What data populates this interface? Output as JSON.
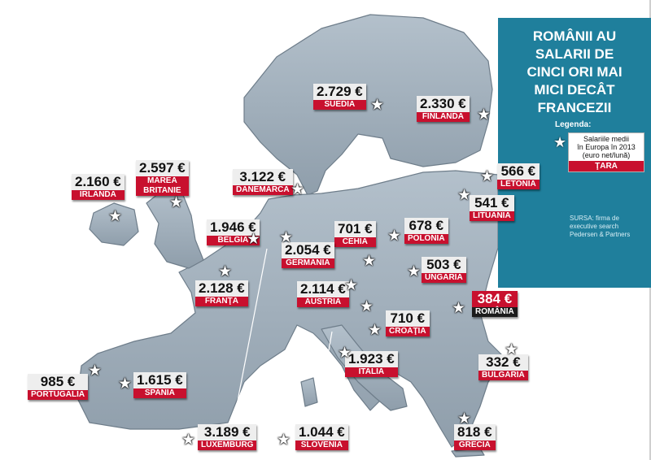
{
  "title": "ROMÂNII AU\nSALARII DE\nCINCI ORI MAI\nMICI DECÂT\nFRANCEZII",
  "legend": {
    "heading": "Legenda:",
    "description": "Salariile medii\nîn Europa în 2013\n(euro net/lună)",
    "category": "ŢARA"
  },
  "source": "SURSA: firma de executive search Pedersen & Partners",
  "countries": [
    {
      "name": "SUEDIA",
      "value": "2.729",
      "unit": "€",
      "highlight": false
    },
    {
      "name": "FINLANDA",
      "value": "2.330",
      "unit": "€",
      "highlight": false
    },
    {
      "name": "IRLANDA",
      "value": "2.160",
      "unit": "€",
      "highlight": false
    },
    {
      "name": "MAREA\nBRITANIE",
      "value": "2.597",
      "unit": "€",
      "highlight": false
    },
    {
      "name": "DANEMARCA",
      "value": "3.122",
      "unit": "€",
      "highlight": false
    },
    {
      "name": "LETONIA",
      "value": "566",
      "unit": "€",
      "highlight": false
    },
    {
      "name": "LITUANIA",
      "value": "541",
      "unit": "€",
      "highlight": false
    },
    {
      "name": "BELGIA",
      "value": "1.946",
      "unit": "€",
      "highlight": false
    },
    {
      "name": "CEHIA",
      "value": "701",
      "unit": "€",
      "highlight": false
    },
    {
      "name": "POLONIA",
      "value": "678",
      "unit": "€",
      "highlight": false
    },
    {
      "name": "GERMANIA",
      "value": "2.054",
      "unit": "€",
      "highlight": false
    },
    {
      "name": "UNGARIA",
      "value": "503",
      "unit": "€",
      "highlight": false
    },
    {
      "name": "FRANŢA",
      "value": "2.128",
      "unit": "€",
      "highlight": false
    },
    {
      "name": "AUSTRIA",
      "value": "2.114",
      "unit": "€",
      "highlight": false
    },
    {
      "name": "ROMÂNIA",
      "value": "384",
      "unit": "€",
      "highlight": true
    },
    {
      "name": "CROAŢIA",
      "value": "710",
      "unit": "€",
      "highlight": false
    },
    {
      "name": "ITALIA",
      "value": "1.923",
      "unit": "€",
      "highlight": false
    },
    {
      "name": "BULGARIA",
      "value": "332",
      "unit": "€",
      "highlight": false
    },
    {
      "name": "PORTUGALIA",
      "value": "985",
      "unit": "€",
      "highlight": false
    },
    {
      "name": "SPANIA",
      "value": "1.615",
      "unit": "€",
      "highlight": false
    },
    {
      "name": "LUXEMBURG",
      "value": "3.189",
      "unit": "€",
      "highlight": false
    },
    {
      "name": "SLOVENIA",
      "value": "1.044",
      "unit": "€",
      "highlight": false
    },
    {
      "name": "GRECIA",
      "value": "818",
      "unit": "€",
      "highlight": false
    }
  ],
  "colors": {
    "panel": "#1f7f9c",
    "land": "#9aa9b6",
    "label_red": "#c8102e",
    "highlight_dark": "#1b1b1b"
  },
  "icons": {
    "marker": "star-icon"
  }
}
